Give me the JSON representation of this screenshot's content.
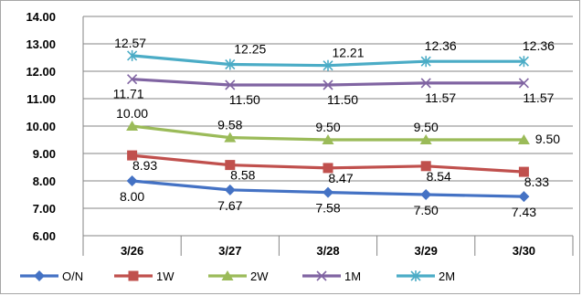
{
  "chart_data": {
    "type": "line",
    "categories": [
      "3/26",
      "3/27",
      "3/28",
      "3/29",
      "3/30"
    ],
    "ylim": [
      6.0,
      14.0
    ],
    "ytick_step": 1.0,
    "yticks": [
      "6.00",
      "7.00",
      "8.00",
      "9.00",
      "10.00",
      "11.00",
      "12.00",
      "13.00",
      "14.00"
    ],
    "grid": "horizontal",
    "legend_placement": "bottom",
    "series": [
      {
        "name": "O/N",
        "color": "#4472c4",
        "marker": "diamond",
        "values": [
          8.0,
          7.67,
          7.58,
          7.5,
          7.43
        ],
        "labels": [
          "8.00",
          "7.67",
          "7.58",
          "7.50",
          "7.43"
        ]
      },
      {
        "name": "1W",
        "color": "#c0504d",
        "marker": "square",
        "values": [
          8.93,
          8.58,
          8.47,
          8.54,
          8.33
        ],
        "labels": [
          "8.93",
          "8.58",
          "8.47",
          "8.54",
          "8.33"
        ]
      },
      {
        "name": "2W",
        "color": "#9bbb59",
        "marker": "triangle",
        "values": [
          10.0,
          9.58,
          9.5,
          9.5,
          9.5
        ],
        "labels": [
          "10.00",
          "9.58",
          "9.50",
          "9.50",
          "9.50"
        ]
      },
      {
        "name": "1M",
        "color": "#8064a2",
        "marker": "x",
        "values": [
          11.71,
          11.5,
          11.5,
          11.57,
          11.57
        ],
        "labels": [
          "11.71",
          "11.50",
          "11.50",
          "11.57",
          "11.57"
        ]
      },
      {
        "name": "2M",
        "color": "#4bacc6",
        "marker": "star",
        "values": [
          12.57,
          12.25,
          12.21,
          12.36,
          12.36
        ],
        "labels": [
          "12.57",
          "12.25",
          "12.21",
          "12.36",
          "12.36"
        ]
      }
    ]
  }
}
